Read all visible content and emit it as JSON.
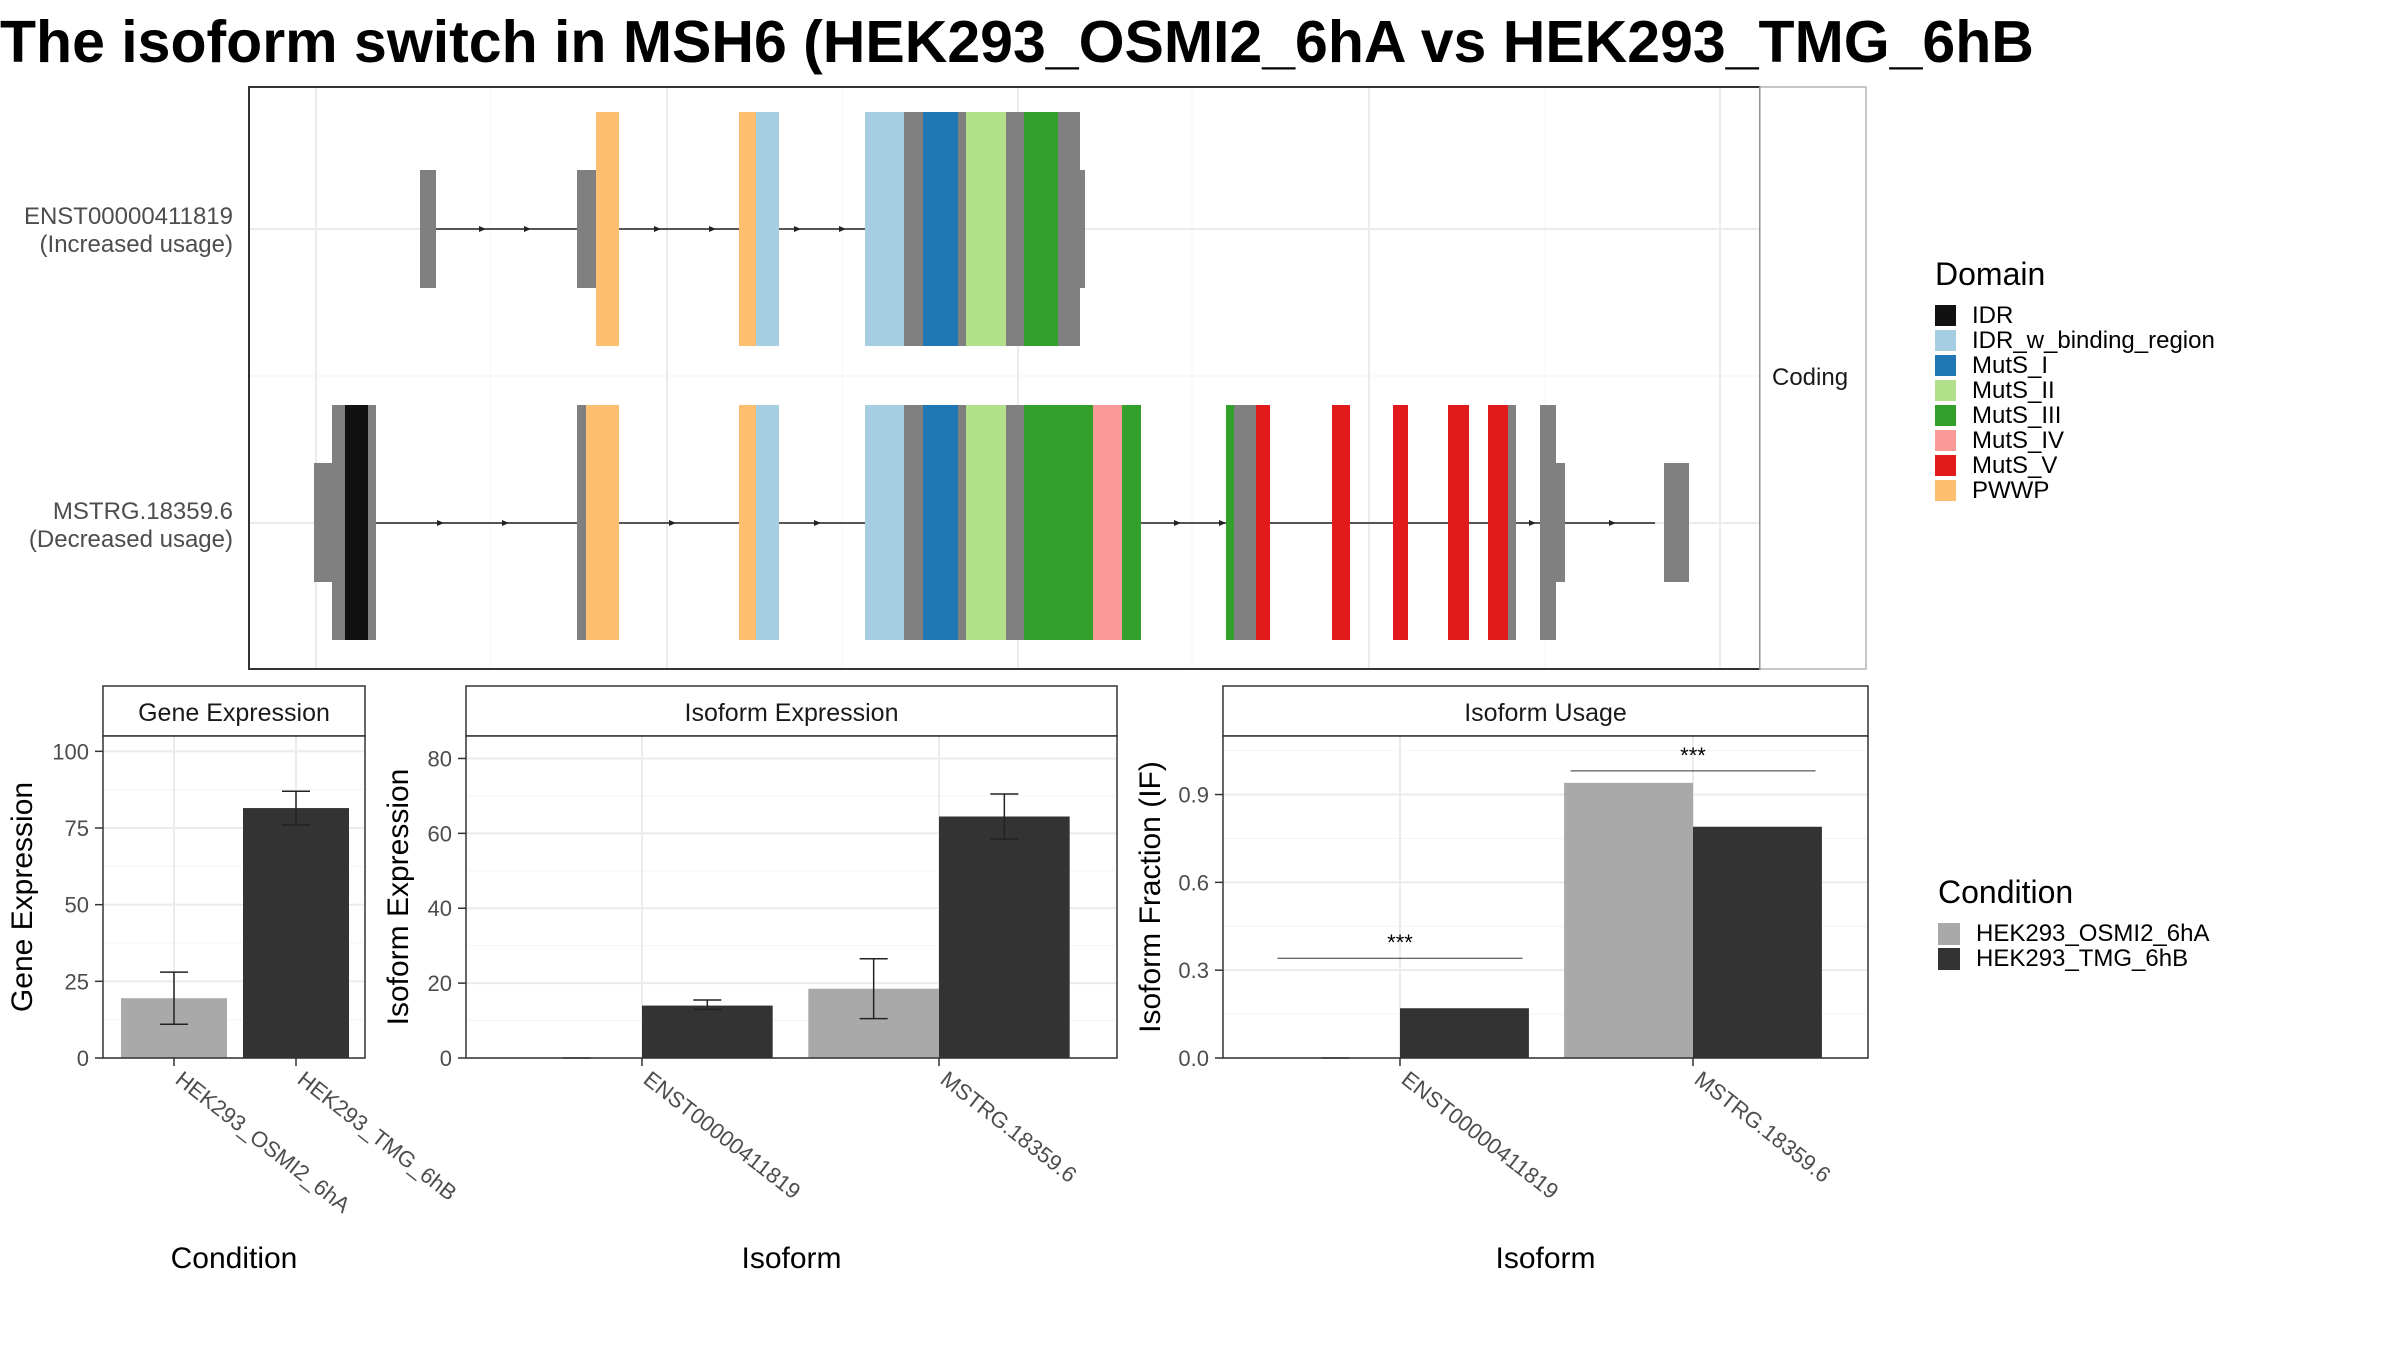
{
  "title": "The isoform switch in MSH6 (HEK293_OSMI2_6hA vs HEK293_TMG_6hB",
  "colors": {
    "IDR": "#111111",
    "IDR_w_binding_region": "#A6CEE3",
    "MutS_I": "#1F78B4",
    "MutS_II": "#B2DF8A",
    "MutS_III": "#33A02C",
    "MutS_IV": "#FB9A99",
    "MutS_V": "#E31A1C",
    "PWWP": "#FDBF6F",
    "noncoding_exon": "#808080",
    "condition_a": "#A9A9A9",
    "condition_b": "#333333"
  },
  "structure": {
    "facet_label": "Coding",
    "isoforms": [
      {
        "id": "ENST00000411819",
        "usage": "(Increased usage)"
      },
      {
        "id": "MSTRG.18359.6",
        "usage": "(Decreased usage)"
      }
    ]
  },
  "domain_legend": {
    "title": "Domain",
    "items": [
      "IDR",
      "IDR_w_binding_region",
      "MutS_I",
      "MutS_II",
      "MutS_III",
      "MutS_IV",
      "MutS_V",
      "PWWP"
    ]
  },
  "condition_legend": {
    "title": "Condition",
    "items": [
      "HEK293_OSMI2_6hA",
      "HEK293_TMG_6hB"
    ]
  },
  "chart_data": [
    {
      "type": "bar",
      "panel": "Gene Expression",
      "categories": [
        "HEK293_OSMI2_6hA",
        "HEK293_TMG_6hB"
      ],
      "values": [
        19.5,
        81.5
      ],
      "error_low": [
        11,
        76
      ],
      "error_high": [
        28,
        87
      ],
      "xlabel": "Condition",
      "ylabel": "Gene Expression",
      "ylim": [
        0,
        105
      ],
      "yticks": [
        0,
        25,
        50,
        75,
        100
      ]
    },
    {
      "type": "bar",
      "panel": "Isoform Expression",
      "categories": [
        "ENST00000411819",
        "MSTRG.18359.6"
      ],
      "series": [
        {
          "condition": "HEK293_OSMI2_6hA",
          "values": [
            0,
            18.5
          ],
          "error_low": [
            0,
            10.5
          ],
          "error_high": [
            0,
            26.5
          ]
        },
        {
          "condition": "HEK293_TMG_6hB",
          "values": [
            14,
            64.5
          ],
          "error_low": [
            13,
            58.5
          ],
          "error_high": [
            15.5,
            70.5
          ]
        }
      ],
      "xlabel": "Isoform",
      "ylabel": "Isoform Expression",
      "ylim": [
        0,
        86
      ],
      "yticks": [
        0,
        20,
        40,
        60,
        80
      ]
    },
    {
      "type": "bar",
      "panel": "Isoform Usage",
      "categories": [
        "ENST00000411819",
        "MSTRG.18359.6"
      ],
      "series": [
        {
          "condition": "HEK293_OSMI2_6hA",
          "values": [
            0,
            0.94
          ]
        },
        {
          "condition": "HEK293_TMG_6hB",
          "values": [
            0.17,
            0.79
          ]
        }
      ],
      "significance": [
        "***",
        "***"
      ],
      "xlabel": "Isoform",
      "ylabel": "Isoform Fraction (IF)",
      "ylim": [
        0,
        1.1
      ],
      "yticks": [
        "0.0",
        "0.3",
        "0.6",
        "0.9"
      ]
    }
  ]
}
